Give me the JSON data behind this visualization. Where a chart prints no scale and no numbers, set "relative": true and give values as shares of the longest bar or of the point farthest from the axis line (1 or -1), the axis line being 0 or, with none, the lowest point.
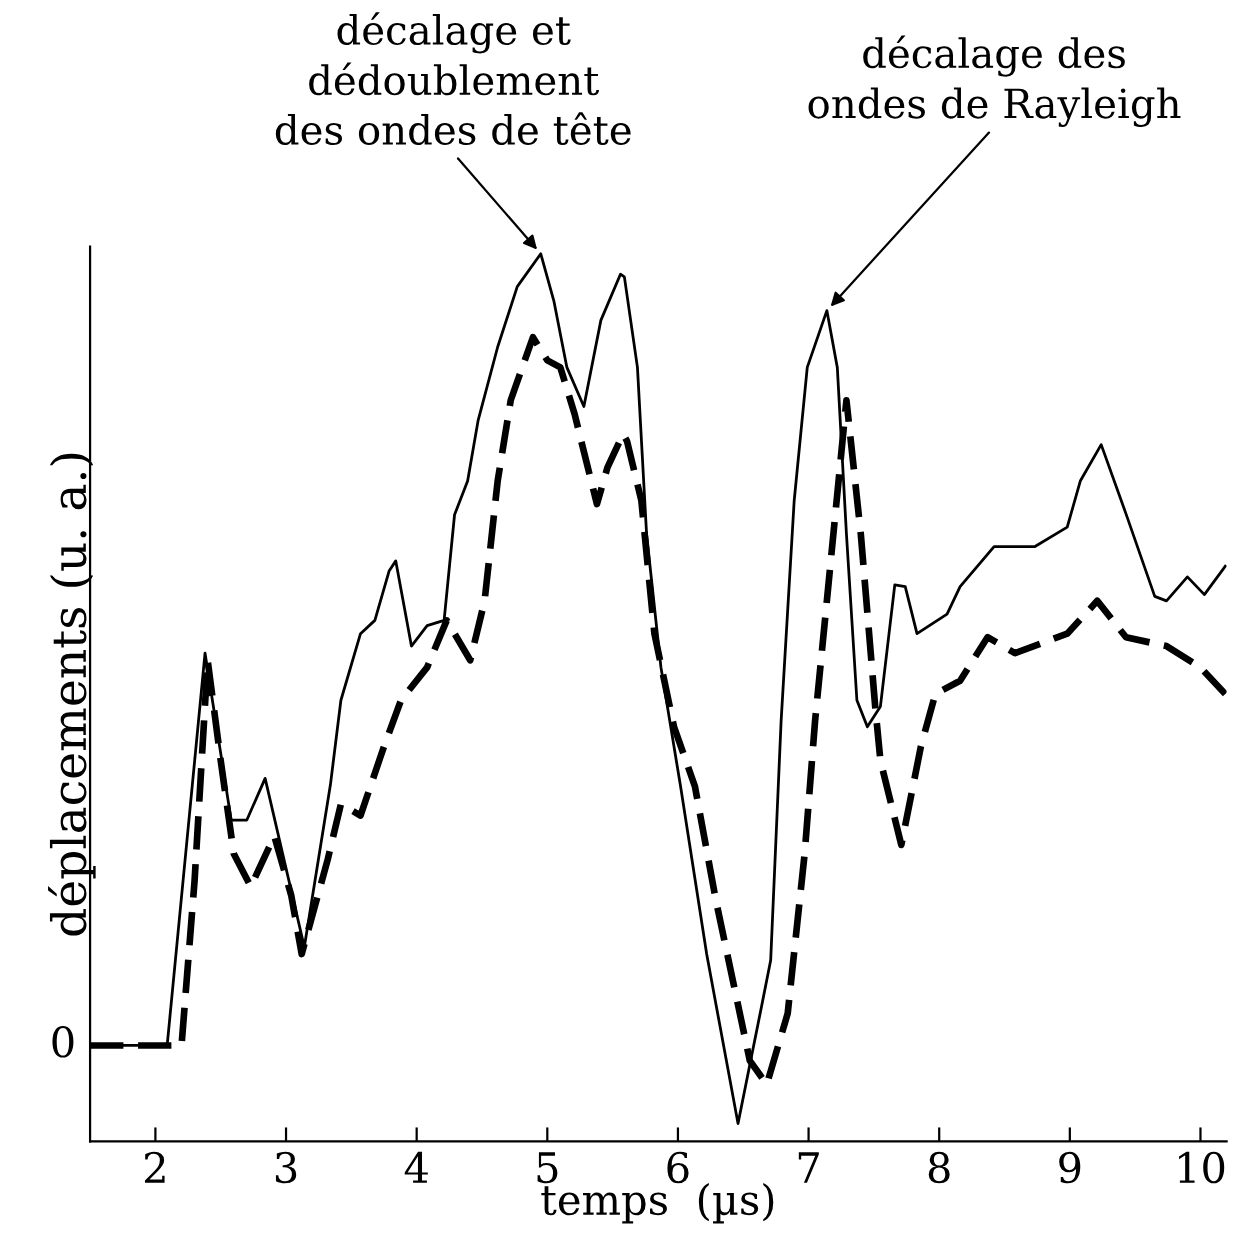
{
  "chart_data": {
    "type": "line",
    "relative": true,
    "xlabel": "temps  (µs)",
    "ylabel": "déplacements (u. a.)",
    "xlim": [
      1.5,
      10.2
    ],
    "xticks": [
      2,
      3,
      4,
      5,
      6,
      7,
      8,
      9,
      10
    ],
    "grid": false,
    "legend": false,
    "annotations": [
      {
        "text": "décalage et\ndédoublement\ndes ondes de tête",
        "x": 4.95,
        "y": 1.0
      },
      {
        "text": "décalage des\nondes de Rayleigh",
        "x": 7.14,
        "y": 0.936
      },
      "0"
    ],
    "series": [
      {
        "color": "#000000",
        "line_style": "solid",
        "x": [
          1.5,
          2.09,
          2.38,
          2.58,
          2.7,
          2.84,
          3.14,
          3.34,
          3.42,
          3.57,
          3.68,
          3.79,
          3.84,
          3.96,
          4.08,
          4.21,
          4.29,
          4.39,
          4.47,
          4.62,
          4.77,
          4.95,
          5.05,
          5.15,
          5.28,
          5.41,
          5.56,
          5.59,
          5.69,
          5.76,
          5.87,
          6.02,
          6.22,
          6.46,
          6.64,
          6.71,
          6.79,
          6.89,
          6.99,
          7.14,
          7.22,
          7.29,
          7.37,
          7.45,
          7.55,
          7.66,
          7.74,
          7.83,
          8.06,
          8.16,
          8.42,
          8.73,
          8.98,
          9.08,
          9.24,
          9.43,
          9.65,
          9.74,
          9.9,
          10.03,
          10.19
        ],
        "values": [
          0.108,
          0.108,
          0.55,
          0.362,
          0.362,
          0.409,
          0.219,
          0.402,
          0.497,
          0.572,
          0.587,
          0.643,
          0.654,
          0.558,
          0.581,
          0.587,
          0.706,
          0.744,
          0.812,
          0.895,
          0.963,
          1.0,
          0.947,
          0.872,
          0.828,
          0.925,
          0.977,
          0.974,
          0.872,
          0.684,
          0.534,
          0.4,
          0.211,
          0.02,
          0.152,
          0.204,
          0.474,
          0.722,
          0.872,
          0.936,
          0.872,
          0.684,
          0.497,
          0.467,
          0.49,
          0.627,
          0.625,
          0.572,
          0.594,
          0.625,
          0.67,
          0.67,
          0.692,
          0.744,
          0.785,
          0.707,
          0.614,
          0.609,
          0.636,
          0.616,
          0.648
        ]
      },
      {
        "color": "#000000",
        "line_style": "dashed",
        "x": [
          1.5,
          2.2,
          2.3,
          2.4,
          2.5,
          2.6,
          2.73,
          2.91,
          3.04,
          3.12,
          3.32,
          3.42,
          3.57,
          3.75,
          3.88,
          4.08,
          4.23,
          4.41,
          4.52,
          4.62,
          4.72,
          4.89,
          5.0,
          5.1,
          5.21,
          5.26,
          5.38,
          5.46,
          5.58,
          5.61,
          5.72,
          5.82,
          5.97,
          6.13,
          6.29,
          6.55,
          6.68,
          6.84,
          6.97,
          7.05,
          7.14,
          7.29,
          7.4,
          7.51,
          7.55,
          7.71,
          7.86,
          7.97,
          8.16,
          8.37,
          8.58,
          8.98,
          9.21,
          9.43,
          9.74,
          10.0,
          10.19
        ],
        "values": [
          0.108,
          0.108,
          0.294,
          0.542,
          0.429,
          0.324,
          0.287,
          0.344,
          0.277,
          0.211,
          0.318,
          0.38,
          0.367,
          0.445,
          0.497,
          0.534,
          0.587,
          0.542,
          0.609,
          0.744,
          0.835,
          0.906,
          0.88,
          0.872,
          0.819,
          0.789,
          0.718,
          0.759,
          0.797,
          0.789,
          0.722,
          0.572,
          0.467,
          0.4,
          0.272,
          0.091,
          0.064,
          0.144,
          0.324,
          0.474,
          0.609,
          0.835,
          0.684,
          0.49,
          0.429,
          0.334,
          0.445,
          0.504,
          0.519,
          0.568,
          0.55,
          0.572,
          0.609,
          0.568,
          0.558,
          0.534,
          0.504
        ]
      }
    ]
  }
}
